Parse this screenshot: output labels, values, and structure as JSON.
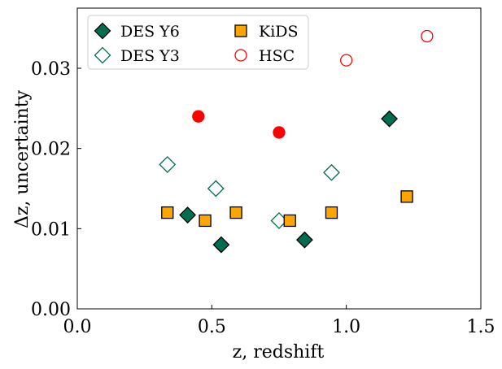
{
  "chart_data": {
    "type": "scatter",
    "title": "",
    "xlabel": "z, redshift",
    "ylabel": "Δz, uncertainty",
    "xlim": [
      0.0,
      1.5
    ],
    "ylim": [
      0.0,
      0.0375
    ],
    "grid": false,
    "legend_position": "top-left",
    "x_ticks": [
      {
        "value": 0.0,
        "label": "0.0"
      },
      {
        "value": 0.5,
        "label": "0.5"
      },
      {
        "value": 1.0,
        "label": "1.0"
      },
      {
        "value": 1.5,
        "label": "1.5"
      }
    ],
    "y_ticks": [
      {
        "value": 0.0,
        "label": "0.00"
      },
      {
        "value": 0.01,
        "label": "0.01"
      },
      {
        "value": 0.02,
        "label": "0.02"
      },
      {
        "value": 0.03,
        "label": "0.03"
      }
    ],
    "series": [
      {
        "name": "DES Y6",
        "marker": "diamond",
        "filled": true,
        "color": "#006d4e",
        "edge": "#000000",
        "points": [
          [
            0.41,
            0.0117
          ],
          [
            0.535,
            0.008
          ],
          [
            0.845,
            0.0086
          ],
          [
            1.16,
            0.0237
          ]
        ]
      },
      {
        "name": "DES Y3",
        "marker": "diamond",
        "filled": false,
        "color": "#006d4e",
        "edge": "#006d4e",
        "points": [
          [
            0.335,
            0.018
          ],
          [
            0.515,
            0.015
          ],
          [
            0.75,
            0.011
          ],
          [
            0.945,
            0.017
          ]
        ]
      },
      {
        "name": "KiDS",
        "marker": "square",
        "filled": true,
        "color": "#ffa500",
        "edge": "#000000",
        "points": [
          [
            0.335,
            0.012
          ],
          [
            0.475,
            0.011
          ],
          [
            0.59,
            0.012
          ],
          [
            0.79,
            0.011
          ],
          [
            0.945,
            0.012
          ],
          [
            1.225,
            0.014
          ]
        ]
      },
      {
        "name": "HSC",
        "marker": "circle",
        "filled": true,
        "color": "#ff0000",
        "edge": "#ff0000",
        "points": [
          [
            0.45,
            0.024
          ],
          [
            0.75,
            0.022
          ]
        ]
      },
      {
        "name": "HSC",
        "marker": "circle",
        "filled": false,
        "color": "#ff0000",
        "edge": "#ff0000",
        "points": [
          [
            1.0,
            0.031
          ],
          [
            1.3,
            0.034
          ]
        ]
      }
    ],
    "legend": [
      {
        "label": "DES Y6",
        "marker": "diamond",
        "filled": true,
        "color": "#006d4e",
        "edge": "#000000"
      },
      {
        "label": "DES Y3",
        "marker": "diamond",
        "filled": false,
        "color": "#006d4e",
        "edge": "#006d4e"
      },
      {
        "label": "KiDS",
        "marker": "square",
        "filled": true,
        "color": "#ffa500",
        "edge": "#000000"
      },
      {
        "label": "HSC",
        "marker": "circle",
        "filled": false,
        "color": "#ff0000",
        "edge": "#ff0000"
      }
    ]
  }
}
